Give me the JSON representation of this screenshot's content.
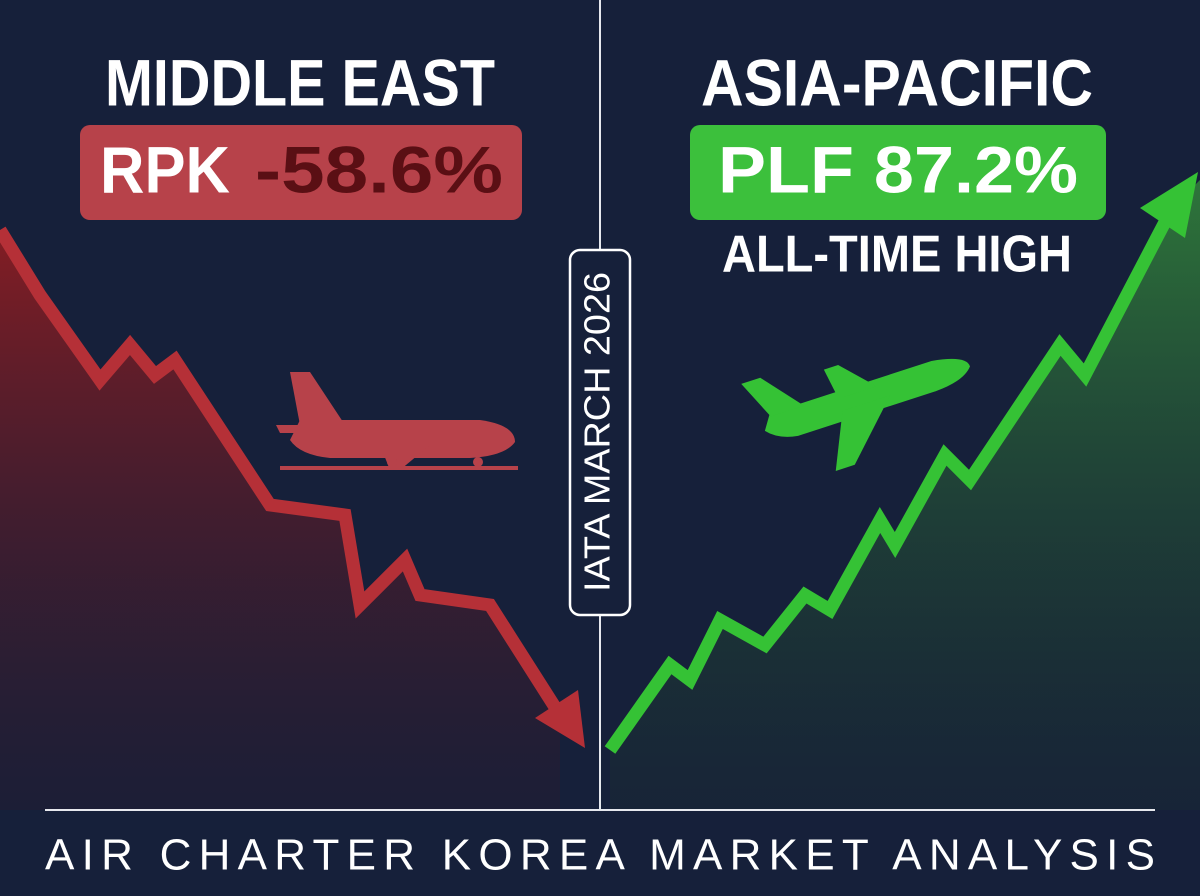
{
  "left": {
    "region": "MIDDLE EAST",
    "metric_label": "RPK",
    "metric_value": "-58.6%"
  },
  "right": {
    "region": "ASIA-PACIFIC",
    "metric": "PLF 87.2%",
    "note": "ALL-TIME HIGH"
  },
  "badge": "IATA MARCH 2026",
  "footer": "AIR CHARTER KOREA MARKET ANALYSIS"
}
